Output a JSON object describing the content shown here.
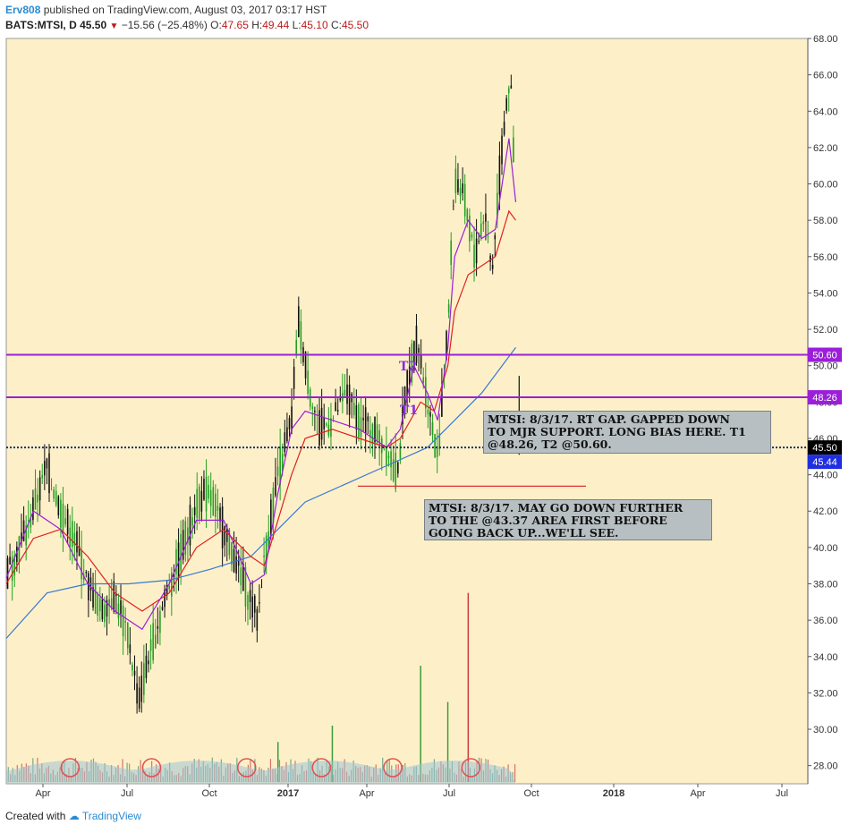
{
  "header": {
    "user": "Erv808",
    "published": "published on TradingView.com, August 03, 2017 03:17 HST",
    "symbol": "BATS:MTSI, D",
    "last": "45.50",
    "arrow": "▼",
    "change": "−15.56 (−25.48%)",
    "o_label": "O:",
    "o": "47.65",
    "h_label": "H:",
    "h": "49.44",
    "l_label": "L:",
    "l": "45.10",
    "c_label": "C:",
    "c": "45.50"
  },
  "footer": {
    "created": "Created with",
    "brand": "TradingView"
  },
  "colors": {
    "background": "#fdf0c8",
    "up_candle": "#22a022",
    "down_candle": "#111111",
    "ma_fast": "#9b1fd8",
    "ma_mid": "#e02020",
    "ma_slow": "#3b78d0",
    "level_line": "#9b1fd8",
    "price_line": "#1a2f6e",
    "price_badge": "#000000",
    "bid_badge": "#1f2fe0",
    "volume": "#cc3b3b"
  },
  "annotations": {
    "note1": "MTSI: 8/3/17. RT GAP. GAPPED DOWN\nTO MJR SUPPORT. LONG BIAS HERE. T1\n@48.26,  T2 @50.60.",
    "note2": "MTSI: 8/3/17. MAY GO DOWN FURTHER\nTO THE @43.37 AREA FIRST BEFORE\nGOING BACK UP...WE'LL SEE.",
    "t1": "T1",
    "t2": "T2"
  },
  "chart_data": {
    "type": "candlestick",
    "ylim": [
      27,
      68
    ],
    "y_ticks": [
      "28.00",
      "30.00",
      "32.00",
      "34.00",
      "36.00",
      "38.00",
      "40.00",
      "42.00",
      "44.00",
      "46.00",
      "48.00",
      "50.00",
      "52.00",
      "54.00",
      "56.00",
      "58.00",
      "60.00",
      "62.00",
      "64.00",
      "66.00",
      "68.00"
    ],
    "x_ticks": [
      "Apr",
      "Jul",
      "Oct",
      "2017",
      "Apr",
      "Jul",
      "Oct",
      "2018",
      "Apr",
      "Jul"
    ],
    "levels": [
      {
        "label": "50.60",
        "value": 50.6
      },
      {
        "label": "48.26",
        "value": 48.26
      }
    ],
    "last_price": {
      "label": "45.50",
      "value": 45.5
    },
    "bid_price": {
      "label": "45.44",
      "value": 45.44
    },
    "support_value": 43.37,
    "price_path": [
      [
        0,
        38.5
      ],
      [
        3,
        41
      ],
      [
        6,
        44.5
      ],
      [
        8,
        42
      ],
      [
        10,
        40.5
      ],
      [
        12,
        38
      ],
      [
        14,
        36.5
      ],
      [
        16,
        37.5
      ],
      [
        18,
        35
      ],
      [
        19.5,
        31.5
      ],
      [
        21,
        34
      ],
      [
        22.5,
        36
      ],
      [
        24,
        38
      ],
      [
        26,
        40
      ],
      [
        28,
        42.5
      ],
      [
        30,
        43
      ],
      [
        32,
        41
      ],
      [
        34,
        39
      ],
      [
        36,
        37
      ],
      [
        37,
        36
      ],
      [
        38,
        39.5
      ],
      [
        40,
        44
      ],
      [
        42,
        47
      ],
      [
        43,
        52.5
      ],
      [
        44.5,
        49
      ],
      [
        46,
        46.5
      ],
      [
        48,
        47
      ],
      [
        50,
        48.5
      ],
      [
        52,
        47
      ],
      [
        54,
        46.5
      ],
      [
        56,
        45.5
      ],
      [
        57.5,
        44
      ],
      [
        59,
        49
      ],
      [
        60.5,
        51.5
      ],
      [
        62,
        48
      ],
      [
        63.5,
        45
      ],
      [
        65,
        52
      ],
      [
        66,
        60.5
      ],
      [
        67.5,
        59
      ],
      [
        69,
        56
      ],
      [
        70.5,
        58.5
      ],
      [
        71.5,
        55
      ],
      [
        72.5,
        60
      ],
      [
        73.5,
        64
      ],
      [
        74.2,
        66
      ],
      [
        75,
        59
      ]
    ],
    "ma_fast": [
      [
        0,
        38.3
      ],
      [
        4,
        42
      ],
      [
        8,
        41
      ],
      [
        12,
        38
      ],
      [
        16,
        36.5
      ],
      [
        20,
        35.5
      ],
      [
        24,
        38
      ],
      [
        28,
        41.5
      ],
      [
        32,
        41.5
      ],
      [
        36,
        38
      ],
      [
        38,
        38.5
      ],
      [
        40,
        43
      ],
      [
        42,
        46.5
      ],
      [
        44,
        47.5
      ],
      [
        48,
        47
      ],
      [
        52,
        46.5
      ],
      [
        56,
        45.5
      ],
      [
        58,
        46.5
      ],
      [
        60,
        50
      ],
      [
        62,
        48.5
      ],
      [
        63.5,
        47
      ],
      [
        65,
        51
      ],
      [
        66,
        56
      ],
      [
        68,
        58
      ],
      [
        70,
        57
      ],
      [
        72,
        57.5
      ],
      [
        74,
        62.5
      ],
      [
        75,
        59
      ]
    ],
    "ma_mid": [
      [
        0,
        38
      ],
      [
        4,
        40.5
      ],
      [
        8,
        41
      ],
      [
        12,
        39.5
      ],
      [
        16,
        37.5
      ],
      [
        20,
        36.5
      ],
      [
        24,
        37.5
      ],
      [
        28,
        40
      ],
      [
        32,
        41
      ],
      [
        36,
        39.5
      ],
      [
        38,
        39
      ],
      [
        40,
        41.5
      ],
      [
        42,
        44
      ],
      [
        44,
        46
      ],
      [
        48,
        46.5
      ],
      [
        52,
        46
      ],
      [
        56,
        45.5
      ],
      [
        58,
        46
      ],
      [
        61,
        48
      ],
      [
        63,
        47.5
      ],
      [
        65,
        50
      ],
      [
        66,
        53
      ],
      [
        68,
        55
      ],
      [
        70,
        55.5
      ],
      [
        72,
        56
      ],
      [
        74,
        58.5
      ],
      [
        75,
        58
      ]
    ],
    "ma_slow": [
      [
        0,
        35
      ],
      [
        6,
        37.5
      ],
      [
        12,
        38
      ],
      [
        18,
        38
      ],
      [
        24,
        38.2
      ],
      [
        30,
        38.8
      ],
      [
        36,
        39.5
      ],
      [
        40,
        41
      ],
      [
        44,
        42.5
      ],
      [
        50,
        43.5
      ],
      [
        56,
        44.5
      ],
      [
        62,
        45.5
      ],
      [
        66,
        47
      ],
      [
        70,
        48.5
      ],
      [
        74,
        50.5
      ],
      [
        75,
        51
      ]
    ],
    "volume": [
      [
        68,
        37.5
      ],
      [
        61,
        33.5
      ],
      [
        65,
        31.5
      ],
      [
        48,
        30.2
      ],
      [
        40,
        29.3
      ]
    ]
  }
}
